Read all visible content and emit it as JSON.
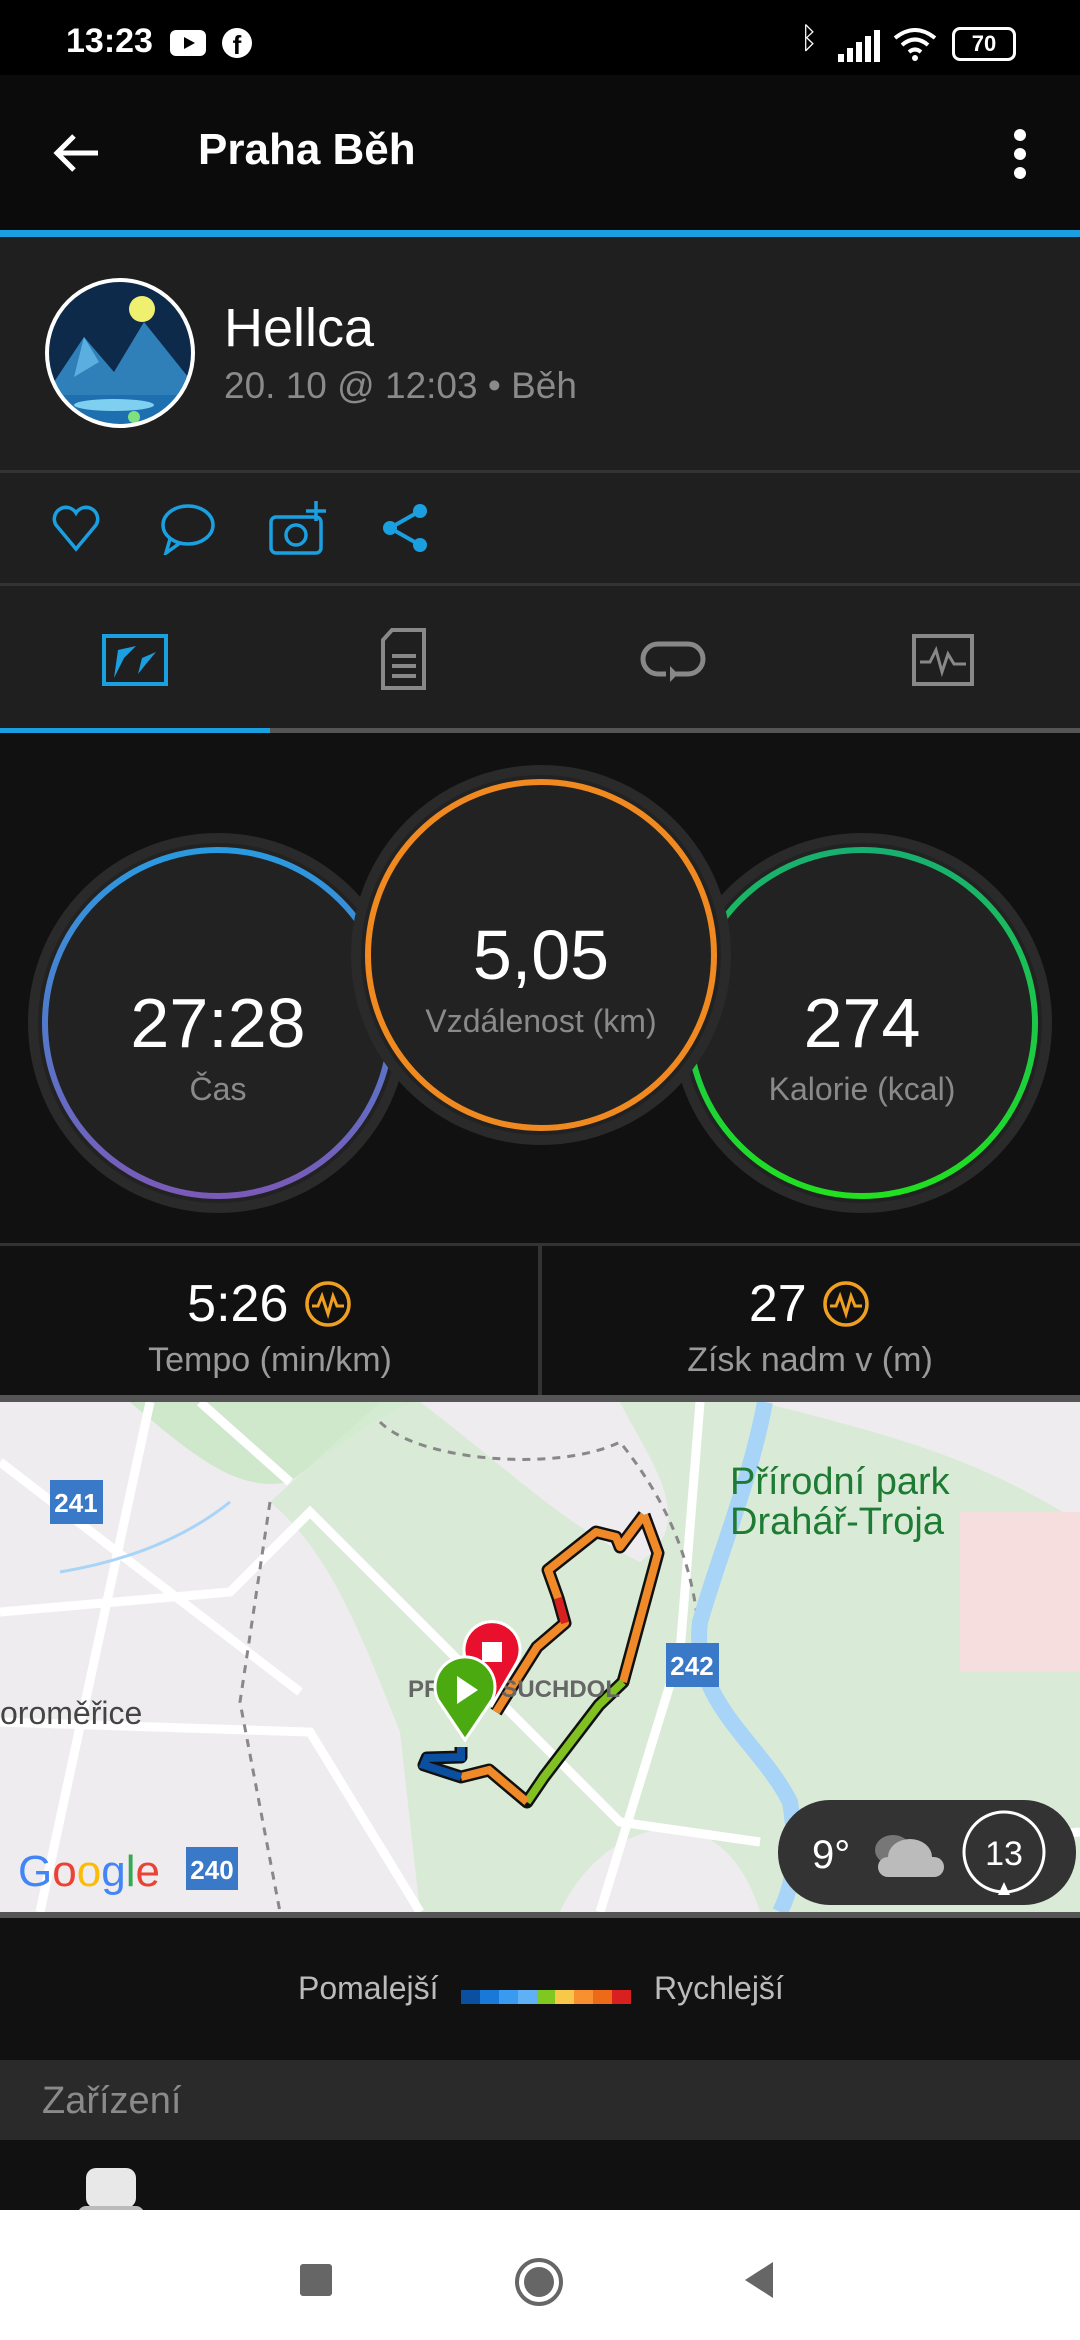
{
  "status_bar": {
    "time": "13:23",
    "battery": "70",
    "icons": [
      "youtube-icon",
      "facebook-icon",
      "bluetooth-icon",
      "signal-icon",
      "wifi-icon",
      "battery-icon"
    ]
  },
  "header": {
    "title": "Praha Běh",
    "back_icon": "arrow-left-icon",
    "menu_icon": "more-vert-icon"
  },
  "profile": {
    "name": "Hellca",
    "meta": "20. 10 @ 12:03 • Běh"
  },
  "actions": [
    "heart-icon",
    "comment-icon",
    "add-photo-icon",
    "share-icon"
  ],
  "tabs": [
    {
      "icon": "map-stats-icon",
      "active": true
    },
    {
      "icon": "details-icon"
    },
    {
      "icon": "laps-icon"
    },
    {
      "icon": "charts-icon"
    }
  ],
  "summary": {
    "time": {
      "value": "27:28",
      "label": "Čas"
    },
    "distance": {
      "value": "5,05",
      "label": "Vzdálenost (km)"
    },
    "calories": {
      "value": "274",
      "label": "Kalorie (kcal)"
    }
  },
  "stats": [
    {
      "value": "5:26",
      "label": "Tempo (min/km)"
    },
    {
      "value": "27",
      "label": "Získ nadm v (m)"
    }
  ],
  "map": {
    "park_label_1": "Přírodní park",
    "park_label_2": "Drahář-Troja",
    "place": "PRAHA-SUCHDOL",
    "town": "oroměřice",
    "roads": [
      "241",
      "242",
      "240"
    ],
    "attribution": "Google",
    "weather": {
      "temp": "9°",
      "icon": "cloud-icon",
      "wind": "13"
    }
  },
  "legend": {
    "slower": "Pomalejší",
    "faster": "Rychlejší",
    "colors": [
      "#0a4fa0",
      "#1a78d8",
      "#3a9af0",
      "#60b0f5",
      "#80c820",
      "#f8c848",
      "#f89030",
      "#ec6a18",
      "#d82020"
    ]
  },
  "device_section": {
    "title": "Zařízení"
  },
  "accent": "#1a9fe0"
}
